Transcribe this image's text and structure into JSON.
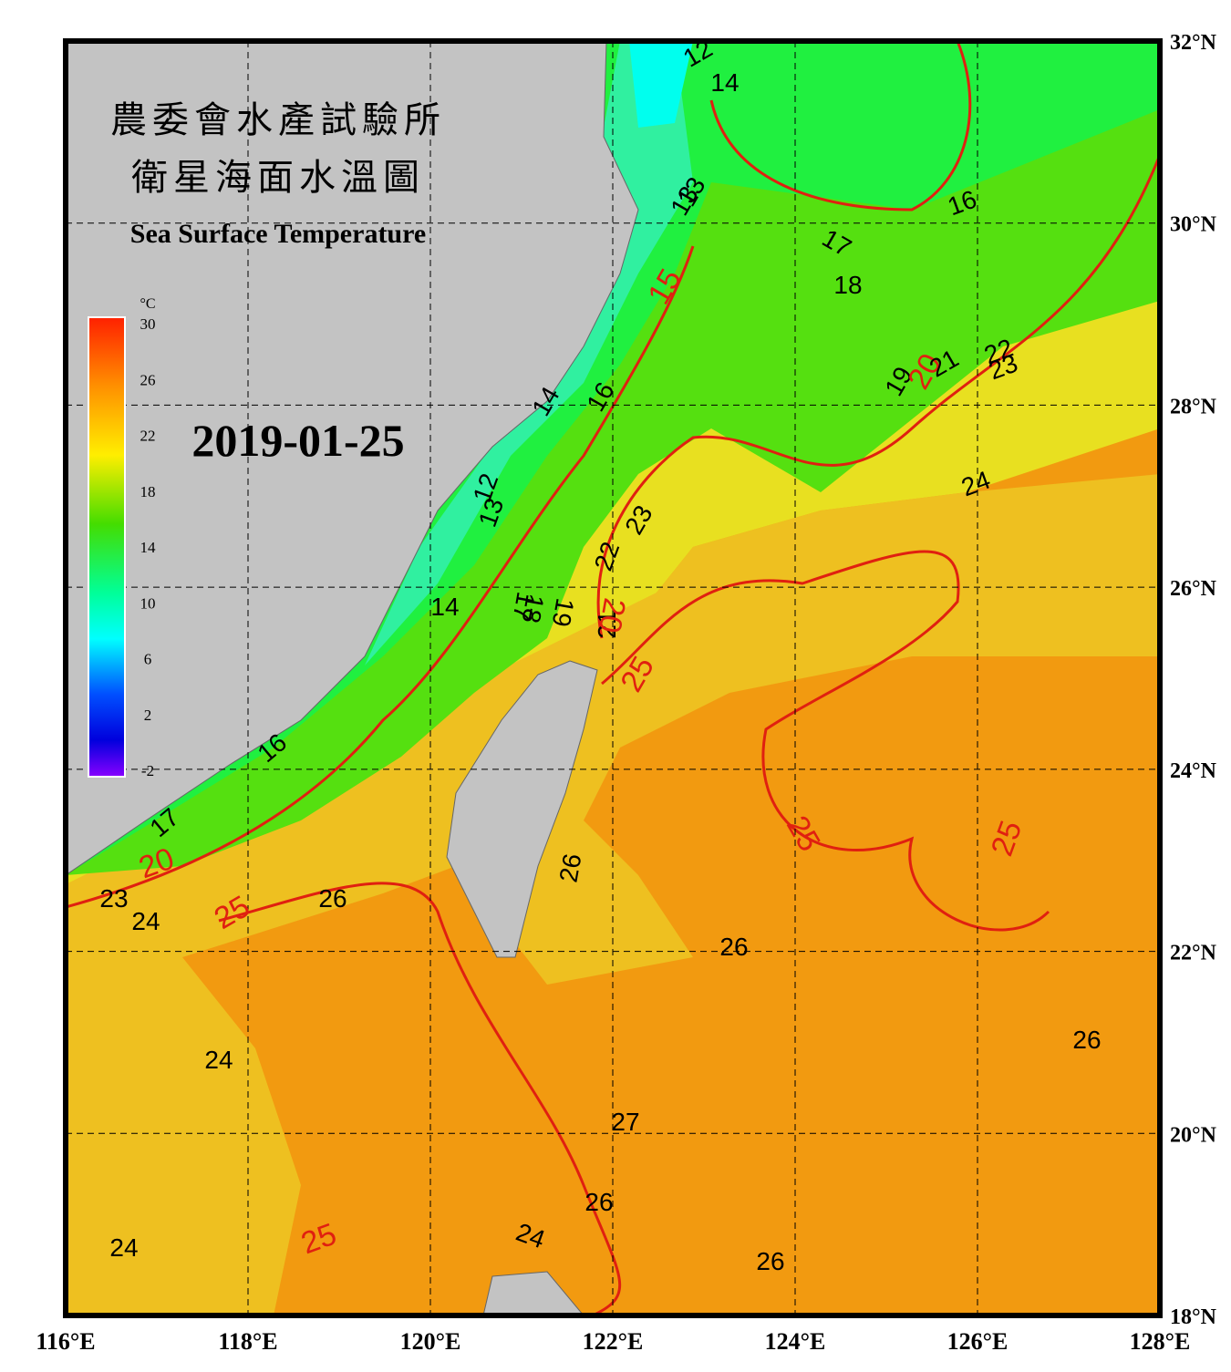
{
  "header": {
    "title_line_1": "農委會水產試驗所",
    "title_line_2": "衛星海面水溫圖",
    "title_en": "Sea Surface Temperature",
    "date": "2019-01-25"
  },
  "map": {
    "lon_range": [
      116,
      128
    ],
    "lat_range": [
      18,
      32
    ],
    "lon_ticks": [
      {
        "value": 116,
        "label": "116°E"
      },
      {
        "value": 118,
        "label": "118°E"
      },
      {
        "value": 120,
        "label": "120°E"
      },
      {
        "value": 122,
        "label": "122°E"
      },
      {
        "value": 124,
        "label": "124°E"
      },
      {
        "value": 126,
        "label": "126°E"
      },
      {
        "value": 128,
        "label": "128°E"
      }
    ],
    "lat_ticks": [
      {
        "value": 18,
        "label": "18°N"
      },
      {
        "value": 20,
        "label": "20°N"
      },
      {
        "value": 22,
        "label": "22°N"
      },
      {
        "value": 24,
        "label": "24°N"
      },
      {
        "value": 26,
        "label": "26°N"
      },
      {
        "value": 28,
        "label": "28°N"
      },
      {
        "value": 30,
        "label": "30°N"
      },
      {
        "value": 32,
        "label": "32°N"
      }
    ]
  },
  "colorbar": {
    "unit": "°C",
    "range": [
      -2,
      30
    ],
    "ticks": [
      30,
      26,
      22,
      18,
      14,
      10,
      6,
      2,
      -2
    ]
  },
  "contour_labels": {
    "values": [
      12,
      14,
      13,
      16,
      17,
      18,
      15,
      13,
      16,
      14,
      12,
      13,
      14,
      19,
      20,
      21,
      22,
      23,
      24,
      23,
      22,
      21,
      20,
      19,
      18,
      17,
      25,
      16,
      17,
      20,
      23,
      24,
      25,
      26,
      25,
      26,
      26,
      25,
      26,
      24,
      24,
      27,
      26,
      24,
      25,
      26
    ],
    "colors": [
      "black",
      "black",
      "black",
      "black",
      "black",
      "black",
      "red",
      "black",
      "black",
      "black",
      "black",
      "black",
      "black",
      "black",
      "red",
      "black",
      "black",
      "black",
      "black",
      "black",
      "black",
      "black",
      "red",
      "black",
      "black",
      "black",
      "red",
      "black",
      "black",
      "red",
      "black",
      "black",
      "red",
      "black",
      "red",
      "black",
      "black",
      "red",
      "black",
      "black",
      "black",
      "black",
      "black",
      "black",
      "red",
      "black"
    ]
  }
}
